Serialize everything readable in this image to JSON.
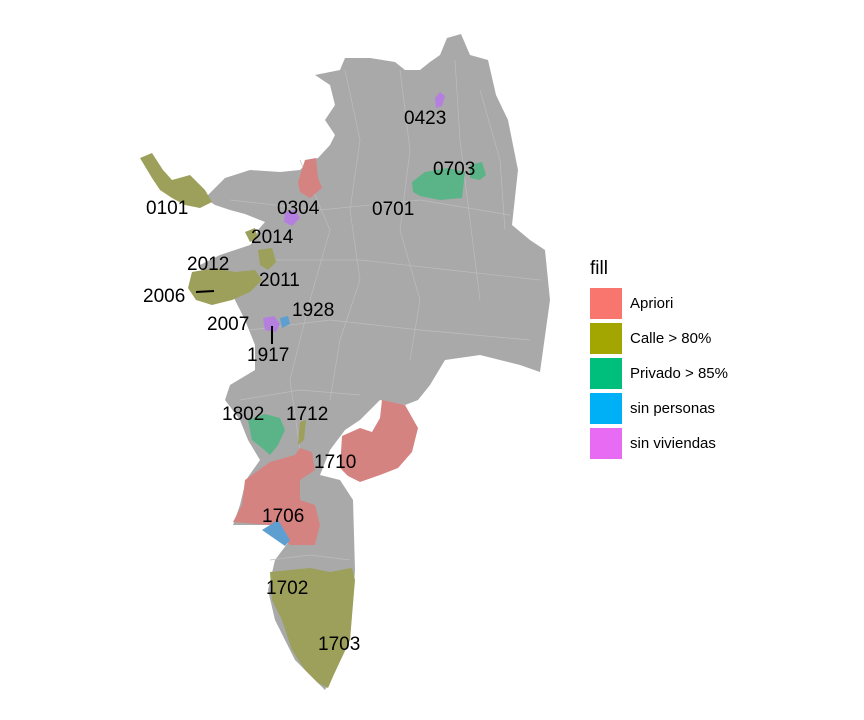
{
  "legend": {
    "title": "fill",
    "items": [
      {
        "key": "apriori",
        "label": "Apriori",
        "color": "#F8766D"
      },
      {
        "key": "calle",
        "label": "Calle > 80%",
        "color": "#A3A500"
      },
      {
        "key": "privado",
        "label": "Privado > 85%",
        "color": "#00BF7D"
      },
      {
        "key": "sin_personas",
        "label": "sin personas",
        "color": "#00B0F6"
      },
      {
        "key": "sin_viviendas",
        "label": "sin viviendas",
        "color": "#E76BF3"
      }
    ]
  },
  "colors": {
    "base": "#A9A9A9",
    "apriori_muted": "#D48381",
    "calle_muted": "#9CA05A",
    "privado_muted": "#5BB487",
    "sin_personas_muted": "#5E9FD1",
    "sin_viviendas_muted": "#B57FE0"
  },
  "zones": [
    {
      "id": "0101",
      "category": "calle"
    },
    {
      "id": "0304",
      "category": "sin_viviendas"
    },
    {
      "id": "0423",
      "category": "sin_viviendas"
    },
    {
      "id": "0701",
      "category": "privado"
    },
    {
      "id": "0703",
      "category": "privado"
    },
    {
      "id": "2014",
      "category": "calle"
    },
    {
      "id": "2012",
      "category": "calle"
    },
    {
      "id": "2011",
      "category": "calle"
    },
    {
      "id": "2006",
      "category": "calle"
    },
    {
      "id": "1928",
      "category": "sin_personas"
    },
    {
      "id": "2007",
      "category": "calle"
    },
    {
      "id": "1917",
      "category": "sin_viviendas"
    },
    {
      "id": "1802",
      "category": "privado"
    },
    {
      "id": "1712",
      "category": "calle"
    },
    {
      "id": "1710",
      "category": "apriori"
    },
    {
      "id": "1706",
      "category": "apriori"
    },
    {
      "id": "1702",
      "category": "calle"
    },
    {
      "id": "1703",
      "category": "calle"
    }
  ]
}
